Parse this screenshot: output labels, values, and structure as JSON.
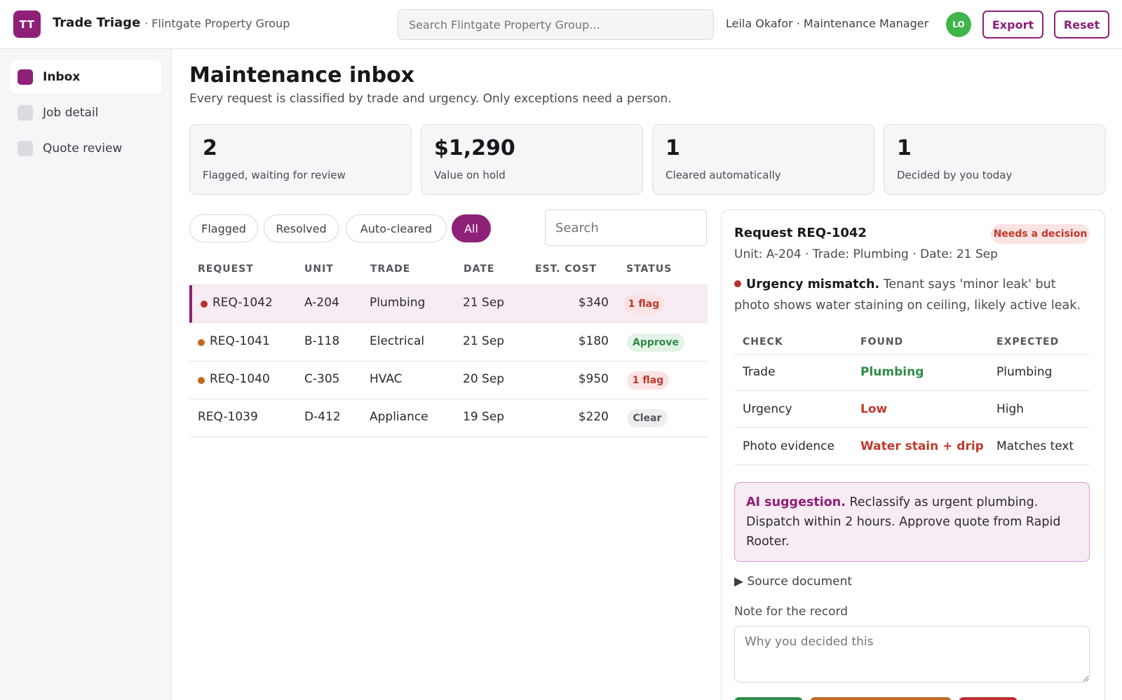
{
  "header": {
    "logo_text": "TT",
    "app_name": "Trade Triage",
    "org_name": "· Flintgate Property Group",
    "search_placeholder": "Search Flintgate Property Group...",
    "user_text": "Leila Okafor · Maintenance Manager",
    "avatar_initials": "LO",
    "export_label": "Export",
    "reset_label": "Reset"
  },
  "sidebar": {
    "items": [
      {
        "label": "Inbox",
        "active": true
      },
      {
        "label": "Job detail",
        "active": false
      },
      {
        "label": "Quote review",
        "active": false
      }
    ]
  },
  "main": {
    "title": "Maintenance inbox",
    "subtitle": "Every request is classified by trade and urgency. Only exceptions need a person.",
    "stats": [
      {
        "value": "2",
        "label": "Flagged, waiting for review"
      },
      {
        "value": "$1,290",
        "label": "Value on hold"
      },
      {
        "value": "1",
        "label": "Cleared automatically"
      },
      {
        "value": "1",
        "label": "Decided by you today"
      }
    ],
    "filters": [
      {
        "label": "Flagged",
        "active": false
      },
      {
        "label": "Resolved",
        "active": false
      },
      {
        "label": "Auto-cleared",
        "active": false
      },
      {
        "label": "All",
        "active": true
      }
    ],
    "table_search_placeholder": "Search",
    "table": {
      "headers": [
        "REQUEST",
        "UNIT",
        "TRADE",
        "DATE",
        "EST. COST",
        "STATUS"
      ],
      "rows": [
        {
          "request": "REQ-1042",
          "unit": "A-204",
          "trade": "Plumbing",
          "date": "21 Sep",
          "cost": "$340",
          "status": "1 flag",
          "status_kind": "flag",
          "dot_color": "#b83030",
          "selected": true
        },
        {
          "request": "REQ-1041",
          "unit": "B-118",
          "trade": "Electrical",
          "date": "21 Sep",
          "cost": "$180",
          "status": "Approve",
          "status_kind": "approve",
          "dot_color": "#c0691f",
          "selected": false
        },
        {
          "request": "REQ-1040",
          "unit": "C-305",
          "trade": "HVAC",
          "date": "20 Sep",
          "cost": "$950",
          "status": "1 flag",
          "status_kind": "flag",
          "dot_color": "#c0691f",
          "selected": false
        },
        {
          "request": "REQ-1039",
          "unit": "D-412",
          "trade": "Appliance",
          "date": "19 Sep",
          "cost": "$220",
          "status": "Clear",
          "status_kind": "clear",
          "dot_color": null,
          "selected": false
        }
      ]
    }
  },
  "detail": {
    "title": "Request REQ-1042",
    "badge": "Needs a decision",
    "meta": "Unit: A-204 · Trade: Plumbing · Date: 21 Sep",
    "alert_title": "Urgency mismatch.",
    "alert_text": "Tenant says 'minor leak' but photo shows water staining on ceiling, likely active leak.",
    "checks_headers": [
      "CHECK",
      "FOUND",
      "EXPECTED"
    ],
    "checks": [
      {
        "check": "Trade",
        "found": "Plumbing",
        "expected": "Plumbing",
        "ok": true
      },
      {
        "check": "Urgency",
        "found": "Low",
        "expected": "High",
        "ok": false
      },
      {
        "check": "Photo evidence",
        "found": "Water stain + drip",
        "expected": "Matches text",
        "ok": false
      }
    ],
    "ai_title": "AI suggestion.",
    "ai_text": "Reclassify as urgent plumbing. Dispatch within 2 hours. Approve quote from Rapid Rooter.",
    "source_label": "▶ Source document",
    "note_label": "Note for the record",
    "note_placeholder": "Why you decided this"
  },
  "colors": {
    "accent": "#8e2077",
    "success": "#2f8c47",
    "danger": "#c0392b",
    "warning": "#c0691f",
    "avatar": "#3fb54a"
  }
}
